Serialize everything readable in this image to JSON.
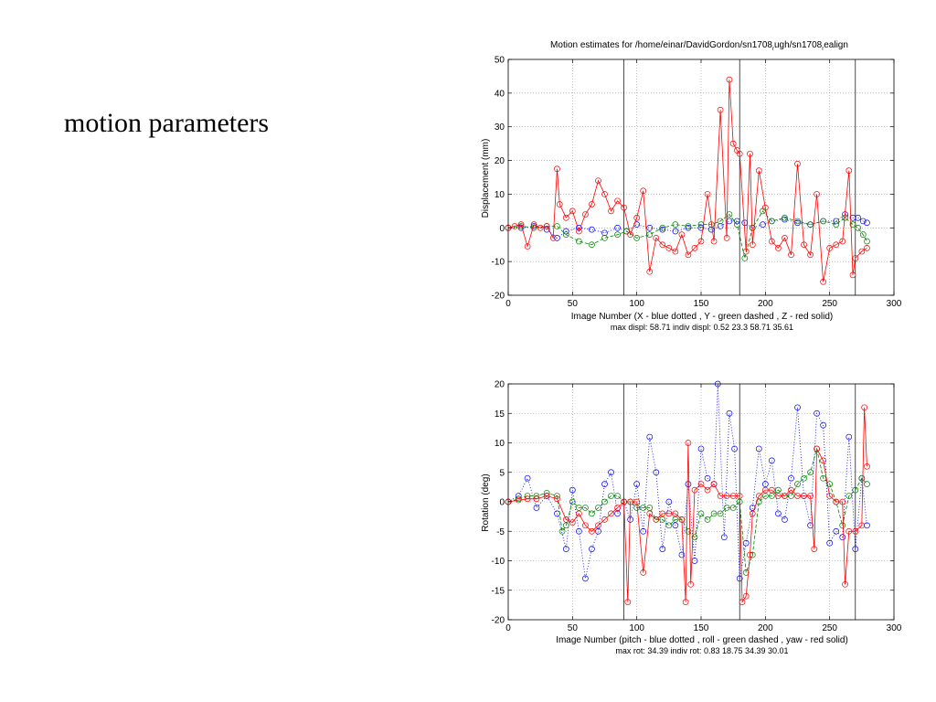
{
  "slide": {
    "title": "motion parameters"
  },
  "chart_data": [
    {
      "type": "line",
      "title_main": "Motion estimates for /home/einar/DavidGordon/sn1708",
      "title_sub1": "r",
      "title_mid": "ugh/sn1708",
      "title_sub2": "r",
      "title_end": "ealign",
      "xlabel": "Image Number    (X - blue dotted , Y - green dashed , Z - red solid)",
      "ylabel": "Displacement (mm)",
      "footer": "max displ: 58.71     indiv displ:  0.52  23.3  58.71  35.61",
      "xlim": [
        0,
        300
      ],
      "ylim": [
        -20,
        50
      ],
      "xticks": [
        0,
        50,
        100,
        150,
        200,
        250,
        300
      ],
      "yticks": [
        -20,
        -10,
        0,
        10,
        20,
        30,
        40,
        50
      ],
      "grid": true,
      "vlines": [
        90,
        180,
        270
      ],
      "colors": {
        "X": "#0000ff",
        "Y": "#008000",
        "Z": "#ff0000"
      },
      "series": [
        {
          "key": "X",
          "style": "dotted",
          "x": [
            0,
            10,
            20,
            30,
            38,
            45,
            55,
            65,
            75,
            85,
            92,
            100,
            110,
            120,
            130,
            140,
            150,
            158,
            165,
            172,
            178,
            184,
            190,
            198,
            205,
            215,
            225,
            235,
            245,
            255,
            262,
            268,
            272,
            276,
            279
          ],
          "y": [
            0,
            0,
            0.5,
            -0.5,
            -3,
            -1,
            0,
            -0.5,
            -1.5,
            0,
            -1,
            1,
            0,
            -0.5,
            -1,
            0,
            0,
            -0.5,
            0.5,
            2,
            2,
            1.5,
            0,
            1,
            2,
            2.5,
            1.5,
            1,
            2,
            2,
            4,
            3,
            3,
            2,
            1.5
          ]
        },
        {
          "key": "Y",
          "style": "dashed",
          "x": [
            0,
            10,
            20,
            30,
            38,
            45,
            55,
            65,
            75,
            85,
            92,
            100,
            110,
            120,
            130,
            140,
            150,
            158,
            165,
            172,
            178,
            184,
            190,
            198,
            205,
            215,
            225,
            235,
            245,
            255,
            262,
            268,
            272,
            276,
            279
          ],
          "y": [
            0,
            0.5,
            0,
            0.5,
            0.5,
            -2,
            -4,
            -5,
            -3,
            -2,
            -1,
            -3,
            -2,
            0,
            1,
            0.5,
            1,
            1,
            2,
            4,
            1,
            -9,
            0,
            5,
            2,
            3,
            2,
            1,
            2,
            1,
            3,
            1,
            0,
            -2,
            -4
          ]
        },
        {
          "key": "Z",
          "style": "solid",
          "x": [
            0,
            5,
            10,
            15,
            20,
            25,
            30,
            35,
            38,
            40,
            45,
            50,
            55,
            60,
            65,
            70,
            75,
            80,
            85,
            90,
            95,
            100,
            105,
            110,
            115,
            120,
            125,
            130,
            135,
            140,
            145,
            150,
            155,
            160,
            165,
            170,
            172,
            175,
            178,
            180,
            185,
            188,
            190,
            195,
            200,
            205,
            210,
            215,
            220,
            225,
            230,
            235,
            240,
            245,
            250,
            255,
            260,
            265,
            268,
            270,
            275,
            279
          ],
          "y": [
            0,
            0.5,
            1,
            -5.5,
            1,
            0,
            0.5,
            -3,
            17.5,
            7,
            3,
            5,
            -1,
            4,
            7,
            14,
            10,
            5,
            8,
            6,
            -2,
            3,
            11,
            -13,
            -3,
            -5,
            -6,
            -7,
            -2,
            -8,
            -6,
            -4,
            10,
            -4,
            35,
            -3,
            44,
            25,
            23,
            22,
            -7,
            22,
            -5,
            17,
            6,
            -4,
            -6,
            -3,
            -8,
            19,
            -5,
            -8,
            10,
            -16,
            -6,
            -5,
            -4,
            17,
            -14,
            -9,
            -7,
            -6
          ]
        }
      ]
    },
    {
      "type": "line",
      "title_main": "",
      "xlabel": "Image Number    (pitch - blue dotted , roll - green dashed , yaw - red solid)",
      "ylabel": "Rotation (deg)",
      "footer": "max rot: 34.39     indiv rot:  0.83  18.75  34.39  30.01",
      "xlim": [
        0,
        300
      ],
      "ylim": [
        -20,
        20
      ],
      "xticks": [
        0,
        50,
        100,
        150,
        200,
        250,
        300
      ],
      "yticks": [
        -20,
        -15,
        -10,
        -5,
        0,
        5,
        10,
        15,
        20
      ],
      "grid": true,
      "vlines": [
        90,
        180,
        270
      ],
      "colors": {
        "pitch": "#0000ff",
        "roll": "#008000",
        "yaw": "#ff0000"
      },
      "series": [
        {
          "key": "pitch",
          "style": "dotted",
          "x": [
            0,
            8,
            15,
            22,
            30,
            38,
            45,
            50,
            55,
            60,
            65,
            70,
            75,
            80,
            85,
            90,
            95,
            100,
            105,
            110,
            115,
            120,
            125,
            130,
            135,
            140,
            145,
            150,
            155,
            160,
            163,
            168,
            172,
            176,
            180,
            185,
            190,
            195,
            200,
            205,
            210,
            215,
            220,
            225,
            230,
            235,
            240,
            245,
            250,
            255,
            260,
            265,
            270,
            275,
            279
          ],
          "y": [
            0,
            1,
            4,
            -1,
            1,
            -2,
            -8,
            2,
            -5,
            -13,
            -8,
            -5,
            3,
            5,
            -2,
            0,
            -3,
            3,
            -5,
            11,
            5,
            -8,
            0,
            -4,
            -9,
            3,
            -10,
            9,
            4,
            3,
            20,
            -6,
            15,
            9,
            -13,
            -7,
            -1,
            9,
            3,
            7,
            -2,
            -3,
            4,
            16,
            1,
            -4,
            15,
            13,
            -7,
            -5,
            -6,
            11,
            -8,
            4,
            -4
          ]
        },
        {
          "key": "roll",
          "style": "dashed",
          "x": [
            0,
            8,
            15,
            22,
            30,
            38,
            42,
            45,
            50,
            55,
            60,
            65,
            70,
            75,
            80,
            85,
            90,
            95,
            100,
            105,
            110,
            115,
            120,
            125,
            130,
            135,
            140,
            145,
            150,
            155,
            160,
            165,
            170,
            175,
            180,
            185,
            190,
            195,
            200,
            205,
            210,
            215,
            220,
            225,
            230,
            235,
            240,
            245,
            250,
            255,
            260,
            265,
            270,
            275,
            279
          ],
          "y": [
            0,
            0.5,
            1,
            1,
            1.5,
            1,
            -5,
            -4,
            0,
            -1,
            -1,
            -2,
            -1,
            0,
            1,
            1,
            0,
            0,
            -1,
            -1,
            -1,
            -3,
            -3,
            -4,
            -3,
            -3,
            -5,
            -6,
            -2,
            -3,
            -2,
            -2,
            -1,
            -1,
            0,
            -12,
            -9,
            0,
            1,
            1,
            2,
            1,
            1,
            3,
            4,
            5,
            9,
            4,
            3,
            0,
            -4,
            1,
            2,
            4,
            3
          ]
        },
        {
          "key": "yaw",
          "style": "solid",
          "x": [
            0,
            8,
            15,
            22,
            30,
            38,
            45,
            50,
            55,
            60,
            65,
            70,
            75,
            80,
            85,
            90,
            93,
            95,
            100,
            105,
            110,
            115,
            120,
            125,
            130,
            135,
            138,
            140,
            142,
            145,
            150,
            155,
            160,
            165,
            170,
            175,
            180,
            182,
            185,
            188,
            190,
            195,
            200,
            205,
            210,
            215,
            220,
            225,
            230,
            235,
            238,
            240,
            245,
            250,
            255,
            260,
            262,
            265,
            270,
            275,
            277,
            279
          ],
          "y": [
            0,
            0.3,
            0.5,
            0.5,
            1,
            0.5,
            -3,
            -3.5,
            -2,
            -4,
            -5,
            -4,
            -3,
            -2,
            -1,
            0,
            -17,
            0,
            0,
            -12,
            -2,
            -3,
            -2,
            -2,
            -2,
            -3,
            -17,
            10,
            -14,
            2,
            3,
            2,
            3,
            1,
            1,
            1,
            1,
            -17,
            -16,
            -9,
            -2,
            1,
            2,
            2,
            1,
            1,
            2,
            1,
            1,
            1,
            -8,
            9,
            7,
            1,
            0,
            0,
            -14,
            -5,
            -5,
            -4,
            16,
            6
          ]
        }
      ]
    }
  ]
}
